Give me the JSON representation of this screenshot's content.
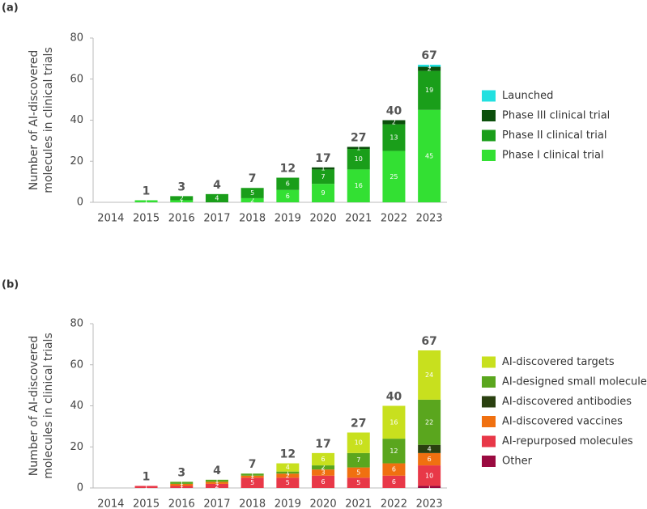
{
  "chart_data": [
    {
      "type": "bar",
      "stacked": true,
      "panel": "(a)",
      "ylabel": [
        "Number of AI-discovered",
        "molecules in clinical trials"
      ],
      "categories": [
        "2014",
        "2015",
        "2016",
        "2017",
        "2018",
        "2019",
        "2020",
        "2021",
        "2022",
        "2023"
      ],
      "ylim": [
        0,
        80
      ],
      "yticks": [
        0,
        20,
        40,
        60,
        80
      ],
      "totals": [
        null,
        1,
        3,
        4,
        7,
        12,
        17,
        27,
        40,
        67
      ],
      "series": [
        {
          "name": "Phase I clinical trial",
          "color": "#33e033",
          "values": [
            null,
            1,
            1,
            null,
            2,
            6,
            9,
            16,
            25,
            45
          ]
        },
        {
          "name": "Phase II clinical trial",
          "color": "#1a9e1a",
          "values": [
            null,
            null,
            2,
            4,
            5,
            6,
            7,
            10,
            13,
            19
          ]
        },
        {
          "name": "Phase III clinical trial",
          "color": "#0b4f0b",
          "values": [
            null,
            null,
            null,
            null,
            null,
            null,
            1,
            1,
            2,
            2
          ]
        },
        {
          "name": "Launched",
          "color": "#22e0e0",
          "values": [
            null,
            null,
            null,
            null,
            null,
            null,
            null,
            null,
            null,
            1
          ]
        }
      ]
    },
    {
      "type": "bar",
      "stacked": true,
      "panel": "(b)",
      "ylabel": [
        "Number of AI-discovered",
        "molecules in clinical trials"
      ],
      "categories": [
        "2014",
        "2015",
        "2016",
        "2017",
        "2018",
        "2019",
        "2020",
        "2021",
        "2022",
        "2023"
      ],
      "ylim": [
        0,
        80
      ],
      "yticks": [
        0,
        20,
        40,
        60,
        80
      ],
      "totals": [
        null,
        1,
        3,
        4,
        7,
        12,
        17,
        27,
        40,
        67
      ],
      "series": [
        {
          "name": "Other",
          "color": "#9a0a40",
          "values": [
            null,
            null,
            null,
            null,
            null,
            null,
            null,
            null,
            null,
            1
          ]
        },
        {
          "name": "AI-repurposed molecules",
          "color": "#e83848",
          "values": [
            null,
            1,
            1,
            2,
            5,
            5,
            6,
            5,
            6,
            10
          ]
        },
        {
          "name": "AI-discovered vaccines",
          "color": "#f07010",
          "values": [
            null,
            null,
            1,
            1,
            1,
            2,
            3,
            5,
            6,
            6
          ]
        },
        {
          "name": "AI-discovered antibodies",
          "color": "#2a4010",
          "values": [
            null,
            null,
            null,
            null,
            null,
            null,
            null,
            null,
            null,
            4
          ]
        },
        {
          "name": "AI-designed small molecules",
          "color": "#5aa61e",
          "values": [
            null,
            null,
            1,
            1,
            1,
            1,
            2,
            7,
            12,
            22
          ]
        },
        {
          "name": "AI-discovered targets",
          "color": "#c8e01e",
          "values": [
            null,
            null,
            null,
            null,
            null,
            4,
            6,
            10,
            16,
            24
          ]
        }
      ]
    }
  ]
}
